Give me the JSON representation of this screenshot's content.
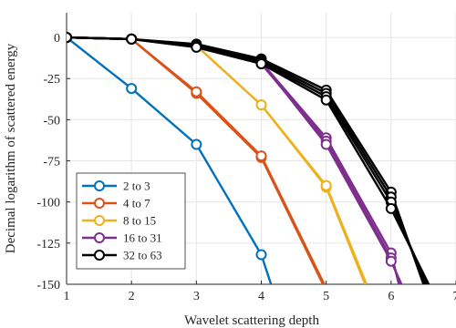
{
  "chart_data": {
    "type": "line",
    "title": "",
    "xlabel": "Wavelet scattering depth",
    "ylabel": "Decimal logarithm of scattered energy",
    "xlim": [
      1,
      7
    ],
    "ylim": [
      -150,
      15
    ],
    "xticks": [
      1,
      2,
      3,
      4,
      5,
      6,
      7
    ],
    "yticks": [
      0,
      -25,
      -50,
      -75,
      -100,
      -125,
      -150
    ],
    "grid": true,
    "legend_position": "bottom-left",
    "series": [
      {
        "name": "2 to 3",
        "color": "#0072BD",
        "lines": [
          [
            [
              1,
              0
            ],
            [
              2,
              -31
            ],
            [
              3,
              -65
            ],
            [
              4,
              -132
            ],
            [
              4.15,
              -150
            ]
          ]
        ]
      },
      {
        "name": "4 to 7",
        "color": "#D95319",
        "lines": [
          [
            [
              1,
              0
            ],
            [
              2,
              -1
            ],
            [
              3,
              -34
            ],
            [
              4,
              -73
            ],
            [
              4.95,
              -150
            ]
          ],
          [
            [
              1,
              0
            ],
            [
              2,
              -1
            ],
            [
              3,
              -33
            ],
            [
              4,
              -72
            ],
            [
              4.97,
              -150
            ]
          ]
        ]
      },
      {
        "name": "8 to 15",
        "color": "#EDB120",
        "lines": [
          [
            [
              1,
              0
            ],
            [
              2,
              -1
            ],
            [
              3,
              -5
            ],
            [
              4,
              -41
            ],
            [
              5,
              -91
            ],
            [
              5.6,
              -150
            ]
          ],
          [
            [
              1,
              0
            ],
            [
              2,
              -1
            ],
            [
              3,
              -5
            ],
            [
              4,
              -41
            ],
            [
              5,
              -90
            ],
            [
              5.62,
              -150
            ]
          ]
        ]
      },
      {
        "name": "16 to 31",
        "color": "#7E2F8E",
        "lines": [
          [
            [
              1,
              0
            ],
            [
              2,
              -1
            ],
            [
              3,
              -5
            ],
            [
              4,
              -15
            ],
            [
              5,
              -61
            ],
            [
              6,
              -131
            ],
            [
              6.12,
              -150
            ]
          ],
          [
            [
              1,
              0
            ],
            [
              2,
              -1
            ],
            [
              3,
              -5
            ],
            [
              4,
              -16
            ],
            [
              5,
              -63
            ],
            [
              6,
              -134
            ],
            [
              6.14,
              -150
            ]
          ],
          [
            [
              1,
              0
            ],
            [
              2,
              -1
            ],
            [
              3,
              -5
            ],
            [
              4,
              -15
            ],
            [
              5,
              -65
            ],
            [
              6,
              -136
            ],
            [
              6.16,
              -150
            ]
          ]
        ]
      },
      {
        "name": "32 to 63",
        "color": "#000000",
        "lines": [
          [
            [
              1,
              0
            ],
            [
              2,
              -1
            ],
            [
              3,
              -4
            ],
            [
              4,
              -13
            ],
            [
              5,
              -32
            ],
            [
              6,
              -94
            ],
            [
              6.5,
              -150
            ]
          ],
          [
            [
              1,
              0
            ],
            [
              2,
              -1
            ],
            [
              3,
              -5
            ],
            [
              4,
              -14
            ],
            [
              5,
              -34
            ],
            [
              6,
              -97
            ],
            [
              6.52,
              -150
            ]
          ],
          [
            [
              1,
              0
            ],
            [
              2,
              -1
            ],
            [
              3,
              -5
            ],
            [
              4,
              -15
            ],
            [
              5,
              -36
            ],
            [
              6,
              -100
            ],
            [
              6.55,
              -150
            ]
          ],
          [
            [
              1,
              0
            ],
            [
              2,
              -1
            ],
            [
              3,
              -6
            ],
            [
              4,
              -16
            ],
            [
              5,
              -38
            ],
            [
              6,
              -104
            ],
            [
              6.58,
              -150
            ]
          ]
        ]
      }
    ]
  }
}
